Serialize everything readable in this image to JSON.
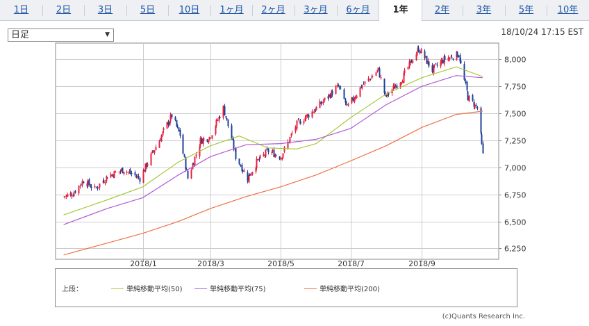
{
  "tabs": [
    {
      "label": "1日",
      "active": false
    },
    {
      "label": "2日",
      "active": false
    },
    {
      "label": "3日",
      "active": false
    },
    {
      "label": "5日",
      "active": false
    },
    {
      "label": "10日",
      "active": false
    },
    {
      "label": "1ヶ月",
      "active": false
    },
    {
      "label": "2ヶ月",
      "active": false
    },
    {
      "label": "3ヶ月",
      "active": false
    },
    {
      "label": "6ヶ月",
      "active": false
    },
    {
      "label": "1年",
      "active": true
    },
    {
      "label": "2年",
      "active": false
    },
    {
      "label": "3年",
      "active": false
    },
    {
      "label": "5年",
      "active": false
    },
    {
      "label": "10年",
      "active": false
    }
  ],
  "period_select": {
    "value": "日足",
    "arrow": "▼"
  },
  "timestamp": "18/10/24 17:15 EST",
  "legend": {
    "heading": "上段：",
    "items": [
      {
        "label": "単純移動平均(50)",
        "color": "#a8c83a"
      },
      {
        "label": "単純移動平均(75)",
        "color": "#b15ad6"
      },
      {
        "label": "単純移動平均(200)",
        "color": "#f07040"
      }
    ]
  },
  "copyright": "(c)Quants Research Inc.",
  "chart_data": {
    "type": "candlestick",
    "ylim": [
      6150,
      8150
    ],
    "y_ticks": [
      "8,000",
      "7,750",
      "7,500",
      "7,250",
      "7,000",
      "6,750",
      "6,500",
      "6,250"
    ],
    "y_tick_values": [
      8000,
      7750,
      7500,
      7250,
      7000,
      6750,
      6500,
      6250
    ],
    "x_tick_labels": [
      "2018/1",
      "2018/3",
      "2018/5",
      "2018/7",
      "2018/9"
    ],
    "x_tick_dates": [
      "2018-01-01",
      "2018-03-01",
      "2018-05-01",
      "2018-07-01",
      "2018-09-01"
    ],
    "xlim": [
      "2017-10-17",
      "2018-11-07"
    ],
    "grid": true,
    "up_color": "#e8203c",
    "down_color": "#1f3f9a",
    "price_path": [
      {
        "date": "2017-10-24",
        "close": 6730
      },
      {
        "date": "2017-11-01",
        "close": 6760
      },
      {
        "date": "2017-11-10",
        "close": 6880
      },
      {
        "date": "2017-11-20",
        "close": 6800
      },
      {
        "date": "2017-12-01",
        "close": 6920
      },
      {
        "date": "2017-12-15",
        "close": 6980
      },
      {
        "date": "2017-12-29",
        "close": 6900
      },
      {
        "date": "2018-01-10",
        "close": 7150
      },
      {
        "date": "2018-01-26",
        "close": 7480
      },
      {
        "date": "2018-02-02",
        "close": 7300
      },
      {
        "date": "2018-02-09",
        "close": 6900
      },
      {
        "date": "2018-02-20",
        "close": 7250
      },
      {
        "date": "2018-02-28",
        "close": 7280
      },
      {
        "date": "2018-03-12",
        "close": 7550
      },
      {
        "date": "2018-03-23",
        "close": 7100
      },
      {
        "date": "2018-04-02",
        "close": 6900
      },
      {
        "date": "2018-04-10",
        "close": 7050
      },
      {
        "date": "2018-04-20",
        "close": 7150
      },
      {
        "date": "2018-05-01",
        "close": 7100
      },
      {
        "date": "2018-05-15",
        "close": 7400
      },
      {
        "date": "2018-06-01",
        "close": 7550
      },
      {
        "date": "2018-06-20",
        "close": 7750
      },
      {
        "date": "2018-06-28",
        "close": 7550
      },
      {
        "date": "2018-07-10",
        "close": 7750
      },
      {
        "date": "2018-07-25",
        "close": 7900
      },
      {
        "date": "2018-07-31",
        "close": 7650
      },
      {
        "date": "2018-08-15",
        "close": 7830
      },
      {
        "date": "2018-08-29",
        "close": 8100
      },
      {
        "date": "2018-09-10",
        "close": 7900
      },
      {
        "date": "2018-09-20",
        "close": 8000
      },
      {
        "date": "2018-10-03",
        "close": 8050
      },
      {
        "date": "2018-10-11",
        "close": 7650
      },
      {
        "date": "2018-10-19",
        "close": 7550
      },
      {
        "date": "2018-10-24",
        "close": 7110
      }
    ],
    "series": [
      {
        "name": "単純移動平均(50)",
        "color": "#a8c83a",
        "points": [
          {
            "date": "2017-10-24",
            "value": 6560
          },
          {
            "date": "2017-12-01",
            "value": 6700
          },
          {
            "date": "2018-01-01",
            "value": 6820
          },
          {
            "date": "2018-02-01",
            "value": 7050
          },
          {
            "date": "2018-03-01",
            "value": 7200
          },
          {
            "date": "2018-03-26",
            "value": 7290
          },
          {
            "date": "2018-04-20",
            "value": 7180
          },
          {
            "date": "2018-05-15",
            "value": 7170
          },
          {
            "date": "2018-06-01",
            "value": 7220
          },
          {
            "date": "2018-07-01",
            "value": 7460
          },
          {
            "date": "2018-08-01",
            "value": 7680
          },
          {
            "date": "2018-09-01",
            "value": 7830
          },
          {
            "date": "2018-10-01",
            "value": 7930
          },
          {
            "date": "2018-10-24",
            "value": 7840
          }
        ]
      },
      {
        "name": "単純移動平均(75)",
        "color": "#b15ad6",
        "points": [
          {
            "date": "2017-10-24",
            "value": 6470
          },
          {
            "date": "2017-12-01",
            "value": 6620
          },
          {
            "date": "2018-01-01",
            "value": 6720
          },
          {
            "date": "2018-02-01",
            "value": 6930
          },
          {
            "date": "2018-03-01",
            "value": 7100
          },
          {
            "date": "2018-04-01",
            "value": 7210
          },
          {
            "date": "2018-05-01",
            "value": 7220
          },
          {
            "date": "2018-06-01",
            "value": 7260
          },
          {
            "date": "2018-07-01",
            "value": 7360
          },
          {
            "date": "2018-08-01",
            "value": 7580
          },
          {
            "date": "2018-09-01",
            "value": 7750
          },
          {
            "date": "2018-10-01",
            "value": 7850
          },
          {
            "date": "2018-10-24",
            "value": 7830
          }
        ]
      },
      {
        "name": "単純移動平均(200)",
        "color": "#f07040",
        "points": [
          {
            "date": "2017-10-24",
            "value": 6190
          },
          {
            "date": "2017-12-01",
            "value": 6300
          },
          {
            "date": "2018-01-01",
            "value": 6390
          },
          {
            "date": "2018-02-01",
            "value": 6500
          },
          {
            "date": "2018-03-01",
            "value": 6620
          },
          {
            "date": "2018-04-01",
            "value": 6730
          },
          {
            "date": "2018-05-01",
            "value": 6820
          },
          {
            "date": "2018-06-01",
            "value": 6930
          },
          {
            "date": "2018-07-01",
            "value": 7060
          },
          {
            "date": "2018-08-01",
            "value": 7200
          },
          {
            "date": "2018-09-01",
            "value": 7370
          },
          {
            "date": "2018-10-01",
            "value": 7490
          },
          {
            "date": "2018-10-24",
            "value": 7520
          }
        ]
      }
    ]
  }
}
